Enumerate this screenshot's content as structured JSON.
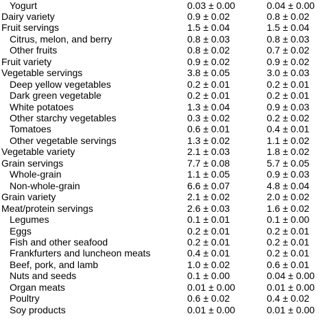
{
  "table": {
    "rows": [
      {
        "label": "Yogurt",
        "indent": true,
        "col1": "0.03 ± 0.00",
        "col2": "0.04 ± 0.00"
      },
      {
        "label": "Dairy variety",
        "indent": false,
        "col1": "0.9  ± 0.02",
        "col2": "0.8  ± 0.02"
      },
      {
        "label": "Fruit servings",
        "indent": false,
        "col1": "1.5  ± 0.04",
        "col2": "1.5  ± 0.04"
      },
      {
        "label": "Citrus, melon, and berry",
        "indent": true,
        "col1": "0.8  ± 0.03",
        "col2": "0.8  ± 0.03"
      },
      {
        "label": "Other fruits",
        "indent": true,
        "col1": "0.8  ± 0.02",
        "col2": "0.7  ± 0.02"
      },
      {
        "label": "Fruit variety",
        "indent": false,
        "col1": "0.9  ± 0.02",
        "col2": "0.9  ± 0.02"
      },
      {
        "label": "Vegetable servings",
        "indent": false,
        "col1": "3.8  ± 0.05",
        "col2": "3.0  ± 0.03"
      },
      {
        "label": "Deep yellow vegetables",
        "indent": true,
        "col1": "0.2  ± 0.01",
        "col2": "0.2  ± 0.01"
      },
      {
        "label": "Dark green vegetable",
        "indent": true,
        "col1": "0.2  ± 0.01",
        "col2": "0.2  ± 0.01"
      },
      {
        "label": "White potatoes",
        "indent": true,
        "col1": "1.3  ± 0.04",
        "col2": "0.9  ± 0.03"
      },
      {
        "label": "Other starchy vegetables",
        "indent": true,
        "col1": "0.3  ± 0.02",
        "col2": "0.2  ± 0.02"
      },
      {
        "label": "Tomatoes",
        "indent": true,
        "col1": "0.6  ± 0.01",
        "col2": "0.4  ± 0.01"
      },
      {
        "label": "Other vegetable servings",
        "indent": true,
        "col1": "1.3  ± 0.02",
        "col2": "1.1  ± 0.02"
      },
      {
        "label": "Vegetable variety",
        "indent": false,
        "col1": "2.1  ± 0.03",
        "col2": "1.8  ± 0.02"
      },
      {
        "label": "Grain servings",
        "indent": false,
        "col1": "7.7  ± 0.08",
        "col2": "5.7  ± 0.05"
      },
      {
        "label": "Whole-grain",
        "indent": true,
        "col1": "1.1  ± 0.05",
        "col2": "0.9  ± 0.03"
      },
      {
        "label": "Non-whole-grain",
        "indent": true,
        "col1": "6.6  ± 0.07",
        "col2": "4.8  ± 0.04"
      },
      {
        "label": "Grain variety",
        "indent": false,
        "col1": "2.1  ± 0.02",
        "col2": "2.0  ± 0.02"
      },
      {
        "label": "Meat/protein servings",
        "indent": false,
        "col1": "2.6  ± 0.03",
        "col2": "1.6  ± 0.02"
      },
      {
        "label": "Legumes",
        "indent": true,
        "col1": "0.1  ± 0.01",
        "col2": "0.1  ± 0.00"
      },
      {
        "label": "Eggs",
        "indent": true,
        "col1": "0.2  ± 0.01",
        "col2": "0.2  ± 0.01"
      },
      {
        "label": "Fish and other seafood",
        "indent": true,
        "col1": "0.2  ± 0.01",
        "col2": "0.2  ± 0.01"
      },
      {
        "label": "Frankfurters and luncheon meats",
        "indent": true,
        "col1": "0.4  ± 0.01",
        "col2": "0.2  ± 0.01"
      },
      {
        "label": "Beef, pork, and lamb",
        "indent": true,
        "col1": "1.0  ± 0.02",
        "col2": "0.6  ± 0.01"
      },
      {
        "label": "Nuts and seeds",
        "indent": true,
        "col1": "0.1  ± 0.00",
        "col2": "0.04 ± 0.00"
      },
      {
        "label": "Organ meats",
        "indent": true,
        "col1": "0.01 ± 0.00",
        "col2": "0.01 ± 0.00"
      },
      {
        "label": "Poultry",
        "indent": true,
        "col1": "0.6  ± 0.02",
        "col2": "0.4  ± 0.02"
      },
      {
        "label": "Soy products",
        "indent": true,
        "col1": "0.01 ± 0.00",
        "col2": "0.01 ± 0.00"
      }
    ]
  }
}
